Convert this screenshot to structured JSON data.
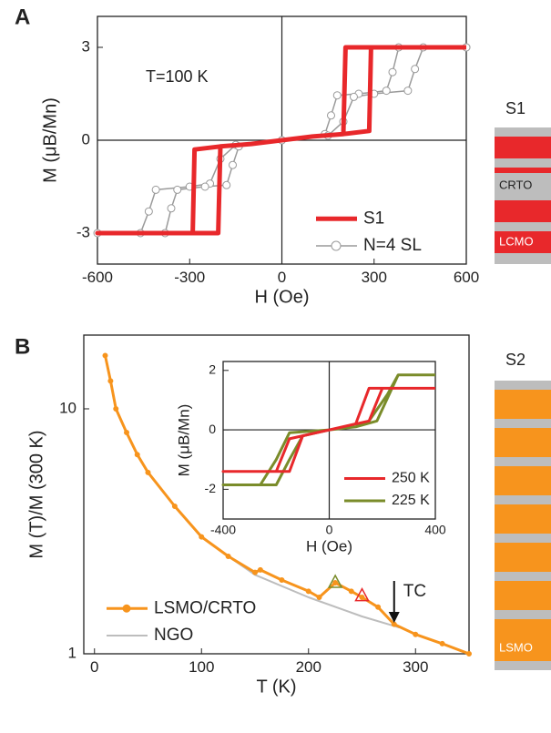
{
  "chart_data": [
    {
      "type": "line",
      "panel": "A",
      "xlabel": "H (Oe)",
      "ylabel": "M (μB/Mn)",
      "annotation": "T=100 K",
      "xlim": [
        -600,
        600
      ],
      "ylim": [
        -4,
        4
      ],
      "xticks": [
        -600,
        -300,
        0,
        300,
        600
      ],
      "yticks": [
        -3,
        0,
        3
      ],
      "log_y": false,
      "crosshair": true,
      "legend": "lower right",
      "series": [
        {
          "name": "N=4 SL",
          "color": "#9a9a9a",
          "marker": "circle-open",
          "x": [
            600,
            380,
            360,
            340,
            250,
            180,
            160,
            140,
            0,
            -150,
            -200,
            -234,
            -300,
            -410,
            -433,
            -460,
            -600,
            -380,
            -360,
            -340,
            -250,
            -180,
            -160,
            -140,
            0,
            150,
            200,
            234,
            300,
            410,
            433,
            460,
            600
          ],
          "values": [
            3,
            3,
            2.2,
            1.6,
            1.5,
            1.45,
            0.8,
            0.2,
            0,
            -0.15,
            -0.6,
            -1.4,
            -1.5,
            -1.6,
            -2.3,
            -3,
            -3,
            -3,
            -2.2,
            -1.6,
            -1.5,
            -1.45,
            -0.8,
            -0.2,
            0,
            0.15,
            0.6,
            1.4,
            1.5,
            1.6,
            2.3,
            3,
            3
          ]
        },
        {
          "name": "S1",
          "color": "#e8282b",
          "marker": "none",
          "x": [
            600,
            207,
            200,
            100,
            0,
            -100,
            -200,
            -284,
            -290,
            -600,
            -207,
            -200,
            -100,
            0,
            100,
            200,
            284,
            290,
            600
          ],
          "values": [
            3,
            3,
            0.2,
            0.12,
            0,
            -0.12,
            -0.2,
            -0.3,
            -3,
            -3,
            -3,
            -0.2,
            -0.12,
            0,
            0.12,
            0.2,
            0.3,
            3,
            3
          ]
        }
      ]
    },
    {
      "type": "line",
      "panel": "B",
      "xlabel": "T (K)",
      "ylabel": "M (T)/M (300 K)",
      "xlim": [
        -10,
        350
      ],
      "ylim": [
        1,
        20
      ],
      "xticks": [
        0,
        100,
        200,
        300
      ],
      "yticks": [
        1,
        10
      ],
      "log_y": true,
      "crosshair": false,
      "legend": "lower left",
      "series": [
        {
          "name": "NGO",
          "color": "#bdbdbd",
          "marker": "none",
          "x": [
            125,
            150,
            200,
            250,
            285
          ],
          "values": [
            2.5,
            2.1,
            1.7,
            1.42,
            1.28
          ]
        },
        {
          "name": "LSMO/CRTO",
          "color": "#f7941d",
          "marker": "dot",
          "x": [
            10,
            15,
            20,
            30,
            40,
            50,
            75,
            100,
            125,
            150,
            155,
            175,
            200,
            210,
            225,
            240,
            250,
            265,
            280,
            300,
            325,
            350
          ],
          "values": [
            16.5,
            13,
            10,
            8,
            6.5,
            5.5,
            4,
            3.0,
            2.5,
            2.15,
            2.2,
            2.0,
            1.8,
            1.7,
            1.95,
            1.8,
            1.7,
            1.55,
            1.32,
            1.2,
            1.1,
            1.0
          ]
        }
      ],
      "markers": [
        {
          "x": 225,
          "y": 1.95,
          "color": "#7a8c2a"
        },
        {
          "x": 250,
          "y": 1.72,
          "color": "#e8282b"
        }
      ],
      "arrow": {
        "x": 280,
        "label": "TC"
      }
    },
    {
      "type": "line",
      "xlabel": "H (Oe)",
      "ylabel": "M (μB/Mn)",
      "xlim": [
        -400,
        400
      ],
      "ylim": [
        -3.0,
        2.3
      ],
      "xticks": [
        -400,
        0,
        400
      ],
      "yticks": [
        -2,
        0,
        2
      ],
      "log_y": false,
      "crosshair": true,
      "legend": "lower right",
      "series": [
        {
          "name": "225 K",
          "color": "#7a8c2a",
          "marker": "none",
          "x": [
            400,
            260,
            220,
            150,
            100,
            0,
            -150,
            -200,
            -260,
            -400,
            -260,
            -200,
            -150,
            -100,
            -50,
            0,
            100,
            180,
            260,
            400
          ],
          "values": [
            1.85,
            1.85,
            1.2,
            0.3,
            0.1,
            0,
            -0.1,
            -1.0,
            -1.85,
            -1.85,
            -1.85,
            -1.85,
            -1.0,
            -0.2,
            -0.1,
            0,
            0.1,
            0.3,
            1.85,
            1.85
          ]
        },
        {
          "name": "250 K",
          "color": "#e8282b",
          "marker": "none",
          "x": [
            400,
            200,
            150,
            0,
            -150,
            -200,
            -400,
            -150,
            -100,
            0,
            100,
            150,
            400
          ],
          "values": [
            1.4,
            1.4,
            0.3,
            0,
            -0.3,
            -1.4,
            -1.4,
            -1.4,
            -0.2,
            0,
            0.2,
            1.4,
            1.4
          ]
        }
      ]
    }
  ],
  "schematics": [
    {
      "label": "S1",
      "layers": [
        "CRTO",
        "LCMO"
      ]
    },
    {
      "label": "S2",
      "layers": [
        "LSMO"
      ]
    }
  ]
}
